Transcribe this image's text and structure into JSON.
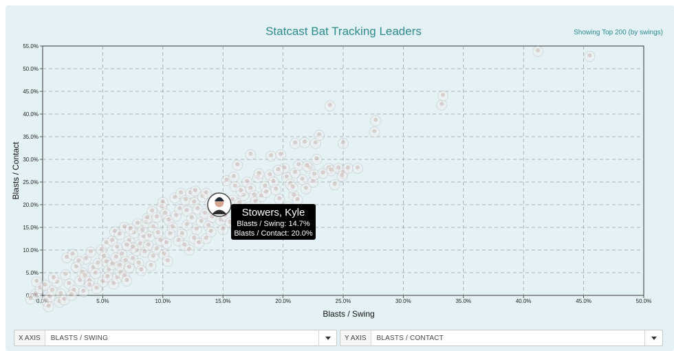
{
  "header": {
    "title": "Statcast Bat Tracking Leaders",
    "subtitle": "Showing Top 200 (by swings)"
  },
  "controls": {
    "x_axis_label": "X AXIS",
    "x_axis_value": "BLASTS / SWING",
    "y_axis_label": "Y AXIS",
    "y_axis_value": "BLASTS / CONTACT"
  },
  "tooltip": {
    "name": "Stowers, Kyle",
    "line1": "Blasts / Swing: 14.7%",
    "line2": "Blasts / Contact: 20.0%"
  },
  "chart_data": {
    "type": "scatter",
    "title": "Statcast Bat Tracking Leaders",
    "xlabel": "Blasts / Swing",
    "ylabel": "Blasts / Contact",
    "xlim": [
      0,
      50
    ],
    "ylim": [
      0,
      55
    ],
    "x_ticks": [
      "0.0%",
      "5.0%",
      "10.0%",
      "15.0%",
      "20.0%",
      "25.0%",
      "30.0%",
      "35.0%",
      "40.0%",
      "45.0%",
      "50.0%"
    ],
    "y_ticks": [
      "0.0%",
      "5.0%",
      "10.0%",
      "15.0%",
      "20.0%",
      "25.0%",
      "30.0%",
      "35.0%",
      "40.0%",
      "45.0%",
      "50.0%",
      "55.0%"
    ],
    "grid": true,
    "highlighted": {
      "name": "Stowers, Kyle",
      "x": 14.7,
      "y": 20.0
    },
    "points": [
      [
        -1.0,
        -0.8
      ],
      [
        -0.6,
        0.2
      ],
      [
        -0.2,
        1.5
      ],
      [
        0.3,
        -1.2
      ],
      [
        0.6,
        -0.4
      ],
      [
        -0.5,
        3.0
      ],
      [
        0.2,
        2.2
      ],
      [
        0.8,
        1.0
      ],
      [
        1.2,
        2.8
      ],
      [
        1.5,
        0.3
      ],
      [
        0.5,
        -2.5
      ],
      [
        1.4,
        -1.5
      ],
      [
        2.2,
        2.5
      ],
      [
        2.6,
        1.0
      ],
      [
        3.1,
        3.2
      ],
      [
        3.3,
        5.0
      ],
      [
        3.5,
        4.3
      ],
      [
        3.9,
        3.1
      ],
      [
        4.2,
        6.0
      ],
      [
        4.4,
        4.8
      ],
      [
        2.0,
        8.3
      ],
      [
        2.5,
        9.0
      ],
      [
        3.6,
        8.0
      ],
      [
        4.0,
        9.5
      ],
      [
        4.6,
        7.0
      ],
      [
        4.9,
        10.0
      ],
      [
        5.1,
        8.5
      ],
      [
        5.3,
        7.3
      ],
      [
        5.5,
        5.5
      ],
      [
        5.8,
        6.8
      ],
      [
        3.0,
        7.5
      ],
      [
        3.9,
        2.2
      ],
      [
        4.5,
        1.5
      ],
      [
        5.0,
        3.0
      ],
      [
        5.4,
        4.0
      ],
      [
        5.9,
        2.5
      ],
      [
        6.2,
        3.8
      ],
      [
        6.5,
        5.0
      ],
      [
        6.8,
        4.2
      ],
      [
        7.0,
        3.2
      ],
      [
        5.3,
        11.5
      ],
      [
        5.8,
        12.0
      ],
      [
        6.2,
        10.5
      ],
      [
        6.6,
        9.0
      ],
      [
        6.9,
        7.5
      ],
      [
        7.2,
        6.1
      ],
      [
        7.5,
        8.0
      ],
      [
        7.8,
        9.8
      ],
      [
        8.1,
        11.2
      ],
      [
        8.4,
        12.8
      ],
      [
        6.0,
        14.0
      ],
      [
        6.4,
        13.4
      ],
      [
        6.8,
        15.0
      ],
      [
        7.2,
        12.0
      ],
      [
        7.6,
        13.7
      ],
      [
        7.9,
        15.8
      ],
      [
        8.3,
        14.2
      ],
      [
        8.6,
        16.0
      ],
      [
        8.9,
        13.0
      ],
      [
        9.2,
        15.0
      ],
      [
        7.5,
        10.5
      ],
      [
        8.0,
        7.0
      ],
      [
        8.5,
        9.5
      ],
      [
        8.8,
        11.0
      ],
      [
        9.2,
        8.5
      ],
      [
        9.5,
        10.2
      ],
      [
        9.8,
        12.0
      ],
      [
        10.1,
        9.0
      ],
      [
        10.3,
        11.5
      ],
      [
        10.6,
        13.5
      ],
      [
        8.7,
        17.0
      ],
      [
        9.1,
        18.5
      ],
      [
        9.5,
        17.2
      ],
      [
        9.9,
        19.5
      ],
      [
        10.2,
        18.0
      ],
      [
        10.0,
        20.5
      ],
      [
        10.5,
        16.5
      ],
      [
        10.8,
        15.0
      ],
      [
        11.1,
        17.5
      ],
      [
        11.4,
        19.0
      ],
      [
        11.0,
        21.5
      ],
      [
        11.5,
        22.5
      ],
      [
        11.9,
        21.0
      ],
      [
        12.3,
        22.5
      ],
      [
        12.6,
        20.5
      ],
      [
        12.9,
        19.0
      ],
      [
        13.3,
        21.7
      ],
      [
        13.6,
        22.5
      ],
      [
        13.9,
        20.3
      ],
      [
        14.2,
        19.0
      ],
      [
        11.6,
        13.5
      ],
      [
        12.0,
        15.5
      ],
      [
        12.4,
        17.0
      ],
      [
        12.8,
        14.5
      ],
      [
        13.2,
        16.2
      ],
      [
        13.5,
        18.0
      ],
      [
        13.8,
        15.3
      ],
      [
        14.1,
        17.2
      ],
      [
        14.5,
        18.5
      ],
      [
        14.8,
        16.5
      ],
      [
        11.8,
        11.0
      ],
      [
        12.2,
        10.0
      ],
      [
        12.6,
        12.5
      ],
      [
        13.0,
        11.5
      ],
      [
        15.2,
        17.5
      ],
      [
        15.5,
        19.5
      ],
      [
        15.8,
        21.0
      ],
      [
        16.1,
        18.2
      ],
      [
        16.4,
        20.3
      ],
      [
        16.7,
        22.0
      ],
      [
        16.0,
        24.0
      ],
      [
        16.5,
        23.0
      ],
      [
        17.0,
        25.0
      ],
      [
        17.3,
        23.5
      ],
      [
        17.6,
        22.0
      ],
      [
        17.9,
        26.0
      ],
      [
        16.2,
        28.7
      ],
      [
        18.5,
        24.0
      ],
      [
        18.9,
        26.5
      ],
      [
        19.2,
        25.0
      ],
      [
        19.0,
        30.7
      ],
      [
        19.8,
        31.0
      ],
      [
        20.1,
        28.0
      ],
      [
        20.3,
        26.0
      ],
      [
        20.6,
        24.5
      ],
      [
        21.0,
        27.0
      ],
      [
        21.3,
        28.7
      ],
      [
        21.6,
        25.5
      ],
      [
        21.9,
        23.5
      ],
      [
        20.9,
        22.0
      ],
      [
        21.0,
        33.5
      ],
      [
        21.8,
        33.7
      ],
      [
        22.7,
        33.5
      ],
      [
        23.0,
        35.3
      ],
      [
        22.8,
        30.0
      ],
      [
        22.2,
        28.0
      ],
      [
        22.5,
        25.0
      ],
      [
        22.0,
        28.5
      ],
      [
        23.9,
        41.8
      ],
      [
        23.8,
        28.0
      ],
      [
        24.0,
        27.5
      ],
      [
        24.6,
        28.0
      ],
      [
        25.0,
        27.0
      ],
      [
        25.4,
        28.0
      ],
      [
        26.2,
        28.0
      ],
      [
        24.9,
        26.3
      ],
      [
        25.0,
        33.5
      ],
      [
        27.7,
        38.5
      ],
      [
        27.6,
        36.0
      ],
      [
        17.3,
        31.0
      ],
      [
        33.2,
        42.0
      ],
      [
        33.3,
        44.0
      ],
      [
        41.2,
        53.8
      ],
      [
        45.5,
        52.7
      ],
      [
        1.8,
        -1.0
      ],
      [
        2.4,
        0.0
      ],
      [
        0.9,
        3.8
      ],
      [
        1.9,
        4.5
      ],
      [
        2.8,
        6.2
      ],
      [
        3.4,
        0.8
      ],
      [
        6.1,
        8.3
      ],
      [
        6.4,
        6.5
      ],
      [
        7.0,
        11.0
      ],
      [
        7.3,
        14.6
      ],
      [
        8.2,
        5.5
      ],
      [
        9.0,
        6.5
      ],
      [
        9.6,
        13.7
      ],
      [
        10.4,
        7.5
      ],
      [
        11.3,
        12.0
      ],
      [
        12.0,
        18.6
      ],
      [
        12.7,
        23.0
      ],
      [
        13.6,
        12.5
      ],
      [
        14.0,
        14.0
      ],
      [
        14.4,
        21.5
      ],
      [
        15.0,
        14.5
      ],
      [
        15.6,
        16.0
      ],
      [
        16.0,
        15.2
      ],
      [
        16.8,
        17.5
      ],
      [
        17.2,
        19.5
      ],
      [
        17.7,
        20.6
      ],
      [
        18.2,
        21.8
      ],
      [
        18.6,
        22.7
      ],
      [
        19.4,
        23.3
      ],
      [
        19.7,
        21.2
      ],
      [
        20.4,
        19.5
      ],
      [
        20.8,
        23.8
      ],
      [
        21.2,
        21.0
      ],
      [
        18.0,
        26.8
      ],
      [
        22.6,
        26.6
      ],
      [
        23.3,
        26.9
      ],
      [
        24.3,
        24.4
      ],
      [
        15.3,
        25.3
      ],
      [
        15.9,
        26.1
      ],
      [
        19.6,
        27.6
      ]
    ]
  }
}
